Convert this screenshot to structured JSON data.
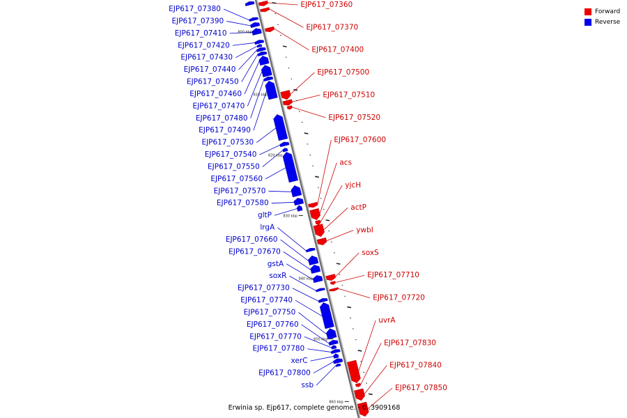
{
  "legend": {
    "forward_label": "Forward",
    "reverse_label": "Reverse",
    "forward_color": "#ee0000",
    "reverse_color": "#0000ee"
  },
  "caption": "Erwinia sp. Ejp617, complete genome. - 0..3909168",
  "ticks": [
    {
      "label": "800 kbp",
      "frac": 0.07
    },
    {
      "label": "810 kbp",
      "frac": 0.22
    },
    {
      "label": "820 kbp",
      "frac": 0.365
    },
    {
      "label": "830 kbp",
      "frac": 0.51
    },
    {
      "label": "840 kbp",
      "frac": 0.66
    },
    {
      "label": "850 kbp",
      "frac": 0.805
    },
    {
      "label": "860 kbp",
      "frac": 0.955
    }
  ],
  "features": [
    {
      "name": "",
      "strand": "reverse",
      "start": 0.0,
      "end": 0.008,
      "ring": 1
    },
    {
      "name": "EJP617_07360",
      "strand": "forward",
      "start": 0.008,
      "end": 0.018,
      "ring": 1
    },
    {
      "name": "EJP617_07370",
      "strand": "forward",
      "start": 0.024,
      "end": 0.032,
      "ring": 1
    },
    {
      "name": "EJP617_07380",
      "strand": "reverse",
      "start": 0.038,
      "end": 0.045,
      "ring": 1
    },
    {
      "name": "EJP617_07390",
      "strand": "reverse",
      "start": 0.05,
      "end": 0.06,
      "ring": 1
    },
    {
      "name": "EJP617_07400",
      "strand": "forward",
      "start": 0.07,
      "end": 0.08,
      "ring": 1
    },
    {
      "name": "EJP617_07410",
      "strand": "reverse",
      "start": 0.064,
      "end": 0.078,
      "ring": 1
    },
    {
      "name": "EJP617_07420",
      "strand": "reverse",
      "start": 0.092,
      "end": 0.1,
      "ring": 1
    },
    {
      "name": "EJP617_07430",
      "strand": "reverse",
      "start": 0.102,
      "end": 0.108,
      "ring": 2
    },
    {
      "name": "EJP617_07440",
      "strand": "reverse",
      "start": 0.11,
      "end": 0.118,
      "ring": 1
    },
    {
      "name": "EJP617_07450",
      "strand": "reverse",
      "start": 0.12,
      "end": 0.128,
      "ring": 1
    },
    {
      "name": "EJP617_07460",
      "strand": "reverse",
      "start": 0.13,
      "end": 0.15,
      "ring": 1
    },
    {
      "name": "EJP617_07470",
      "strand": "reverse",
      "start": 0.152,
      "end": 0.178,
      "ring": 1
    },
    {
      "name": "EJP617_07480",
      "strand": "reverse",
      "start": 0.18,
      "end": 0.188,
      "ring": 1
    },
    {
      "name": "EJP617_07490",
      "strand": "reverse",
      "start": 0.19,
      "end": 0.232,
      "ring": 1
    },
    {
      "name": "EJP617_07500",
      "strand": "forward",
      "start": 0.222,
      "end": 0.242,
      "ring": 1
    },
    {
      "name": "EJP617_07510",
      "strand": "forward",
      "start": 0.244,
      "end": 0.256,
      "ring": 1
    },
    {
      "name": "EJP617_07520",
      "strand": "forward",
      "start": 0.258,
      "end": 0.266,
      "ring": 2
    },
    {
      "name": "EJP617_07530",
      "strand": "reverse",
      "start": 0.27,
      "end": 0.33,
      "ring": 1
    },
    {
      "name": "EJP617_07540",
      "strand": "reverse",
      "start": 0.336,
      "end": 0.345,
      "ring": 1
    },
    {
      "name": "EJP617_07550",
      "strand": "reverse",
      "start": 0.35,
      "end": 0.358,
      "ring": 2
    },
    {
      "name": "EJP617_07560",
      "strand": "reverse",
      "start": 0.36,
      "end": 0.43,
      "ring": 1
    },
    {
      "name": "EJP617_07570",
      "strand": "reverse",
      "start": 0.44,
      "end": 0.465,
      "ring": 1
    },
    {
      "name": "EJP617_07580",
      "strand": "reverse",
      "start": 0.47,
      "end": 0.485,
      "ring": 1
    },
    {
      "name": "gltP",
      "strand": "reverse",
      "start": 0.487,
      "end": 0.5,
      "ring": 2
    },
    {
      "name": "EJP617_07600",
      "strand": "forward",
      "start": 0.49,
      "end": 0.5,
      "ring": 1
    },
    {
      "name": "acs",
      "strand": "forward",
      "start": 0.505,
      "end": 0.53,
      "ring": 1
    },
    {
      "name": "yjcH",
      "strand": "forward",
      "start": 0.532,
      "end": 0.542,
      "ring": 2
    },
    {
      "name": "actP",
      "strand": "forward",
      "start": 0.542,
      "end": 0.57,
      "ring": 1
    },
    {
      "name": "ywbI",
      "strand": "forward",
      "start": 0.575,
      "end": 0.59,
      "ring": 1
    },
    {
      "name": "lrgA",
      "strand": "reverse",
      "start": 0.59,
      "end": 0.597,
      "ring": 1
    },
    {
      "name": "EJP617_07660",
      "strand": "reverse",
      "start": 0.608,
      "end": 0.628,
      "ring": 1
    },
    {
      "name": "EJP617_07670",
      "strand": "reverse",
      "start": 0.63,
      "end": 0.648,
      "ring": 1
    },
    {
      "name": "gstA",
      "strand": "reverse",
      "start": 0.655,
      "end": 0.67,
      "ring": 1
    },
    {
      "name": "soxS",
      "strand": "forward",
      "start": 0.662,
      "end": 0.675,
      "ring": 1
    },
    {
      "name": "EJP617_07710",
      "strand": "forward",
      "start": 0.678,
      "end": 0.685,
      "ring": 2
    },
    {
      "name": "soxR",
      "strand": "reverse",
      "start": 0.686,
      "end": 0.692,
      "ring": 1
    },
    {
      "name": "EJP617_07720",
      "strand": "forward",
      "start": 0.694,
      "end": 0.7,
      "ring": 1
    },
    {
      "name": "EJP617_07730",
      "strand": "reverse",
      "start": 0.71,
      "end": 0.718,
      "ring": 1
    },
    {
      "name": "EJP617_07740",
      "strand": "reverse",
      "start": 0.72,
      "end": 0.78,
      "ring": 1
    },
    {
      "name": "EJP617_07750",
      "strand": "reverse",
      "start": 0.782,
      "end": 0.805,
      "ring": 1
    },
    {
      "name": "EJP617_07760",
      "strand": "reverse",
      "start": 0.81,
      "end": 0.82,
      "ring": 1
    },
    {
      "name": "EJP617_07770",
      "strand": "reverse",
      "start": 0.822,
      "end": 0.83,
      "ring": 2
    },
    {
      "name": "EJP617_07780",
      "strand": "reverse",
      "start": 0.832,
      "end": 0.84,
      "ring": 1
    },
    {
      "name": "xerC",
      "strand": "reverse",
      "start": 0.842,
      "end": 0.852,
      "ring": 2
    },
    {
      "name": "EJP617_07800",
      "strand": "reverse",
      "start": 0.854,
      "end": 0.864,
      "ring": 1
    },
    {
      "name": "ssb",
      "strand": "reverse",
      "start": 0.866,
      "end": 0.872,
      "ring": 2
    },
    {
      "name": "uvrA",
      "strand": "forward",
      "start": 0.868,
      "end": 0.92,
      "ring": 1
    },
    {
      "name": "EJP617_07830",
      "strand": "forward",
      "start": 0.922,
      "end": 0.93,
      "ring": 2
    },
    {
      "name": "EJP617_07840",
      "strand": "forward",
      "start": 0.936,
      "end": 0.962,
      "ring": 1
    },
    {
      "name": "EJP617_07850",
      "strand": "forward",
      "start": 0.968,
      "end": 1.0,
      "ring": 1
    }
  ],
  "labels_left": [
    {
      "text": "EJP617_07380",
      "feature": "EJP617_07380"
    },
    {
      "text": "EJP617_07390",
      "feature": "EJP617_07390"
    },
    {
      "text": "EJP617_07410",
      "feature": "EJP617_07410"
    },
    {
      "text": "EJP617_07420",
      "feature": "EJP617_07420"
    },
    {
      "text": "EJP617_07430",
      "feature": "EJP617_07430"
    },
    {
      "text": "EJP617_07440",
      "feature": "EJP617_07440"
    },
    {
      "text": "EJP617_07450",
      "feature": "EJP617_07450"
    },
    {
      "text": "EJP617_07460",
      "feature": "EJP617_07460"
    },
    {
      "text": "EJP617_07470",
      "feature": "EJP617_07470"
    },
    {
      "text": "EJP617_07480",
      "feature": "EJP617_07480"
    },
    {
      "text": "EJP617_07490",
      "feature": "EJP617_07490"
    },
    {
      "text": "EJP617_07530",
      "feature": "EJP617_07530"
    },
    {
      "text": "EJP617_07540",
      "feature": "EJP617_07540"
    },
    {
      "text": "EJP617_07550",
      "feature": "EJP617_07550"
    },
    {
      "text": "EJP617_07560",
      "feature": "EJP617_07560"
    },
    {
      "text": "EJP617_07570",
      "feature": "EJP617_07570"
    },
    {
      "text": "EJP617_07580",
      "feature": "EJP617_07580"
    },
    {
      "text": "gltP",
      "feature": "gltP"
    },
    {
      "text": "lrgA",
      "feature": "lrgA"
    },
    {
      "text": "EJP617_07660",
      "feature": "EJP617_07660"
    },
    {
      "text": "EJP617_07670",
      "feature": "EJP617_07670"
    },
    {
      "text": "gstA",
      "feature": "gstA"
    },
    {
      "text": "soxR",
      "feature": "soxR"
    },
    {
      "text": "EJP617_07730",
      "feature": "EJP617_07730"
    },
    {
      "text": "EJP617_07740",
      "feature": "EJP617_07740"
    },
    {
      "text": "EJP617_07750",
      "feature": "EJP617_07750"
    },
    {
      "text": "EJP617_07760",
      "feature": "EJP617_07760"
    },
    {
      "text": "EJP617_07770",
      "feature": "EJP617_07770"
    },
    {
      "text": "EJP617_07780",
      "feature": "EJP617_07780"
    },
    {
      "text": "xerC",
      "feature": "xerC"
    },
    {
      "text": "EJP617_07800",
      "feature": "EJP617_07800"
    },
    {
      "text": "ssb",
      "feature": "ssb"
    }
  ],
  "labels_right": [
    {
      "text": "EJP617_07360",
      "feature": "EJP617_07360"
    },
    {
      "text": "EJP617_07370",
      "feature": "EJP617_07370"
    },
    {
      "text": "EJP617_07400",
      "feature": "EJP617_07400"
    },
    {
      "text": "EJP617_07500",
      "feature": "EJP617_07500"
    },
    {
      "text": "EJP617_07510",
      "feature": "EJP617_07510"
    },
    {
      "text": "EJP617_07520",
      "feature": "EJP617_07520"
    },
    {
      "text": "EJP617_07600",
      "feature": "EJP617_07600"
    },
    {
      "text": "acs",
      "feature": "acs"
    },
    {
      "text": "yjcH",
      "feature": "yjcH"
    },
    {
      "text": "actP",
      "feature": "actP"
    },
    {
      "text": "ywbI",
      "feature": "ywbI"
    },
    {
      "text": "soxS",
      "feature": "soxS"
    },
    {
      "text": "EJP617_07710",
      "feature": "EJP617_07710"
    },
    {
      "text": "EJP617_07720",
      "feature": "EJP617_07720"
    },
    {
      "text": "uvrA",
      "feature": "uvrA"
    },
    {
      "text": "EJP617_07830",
      "feature": "EJP617_07830"
    },
    {
      "text": "EJP617_07840",
      "feature": "EJP617_07840"
    },
    {
      "text": "EJP617_07850",
      "feature": "EJP617_07850"
    }
  ]
}
